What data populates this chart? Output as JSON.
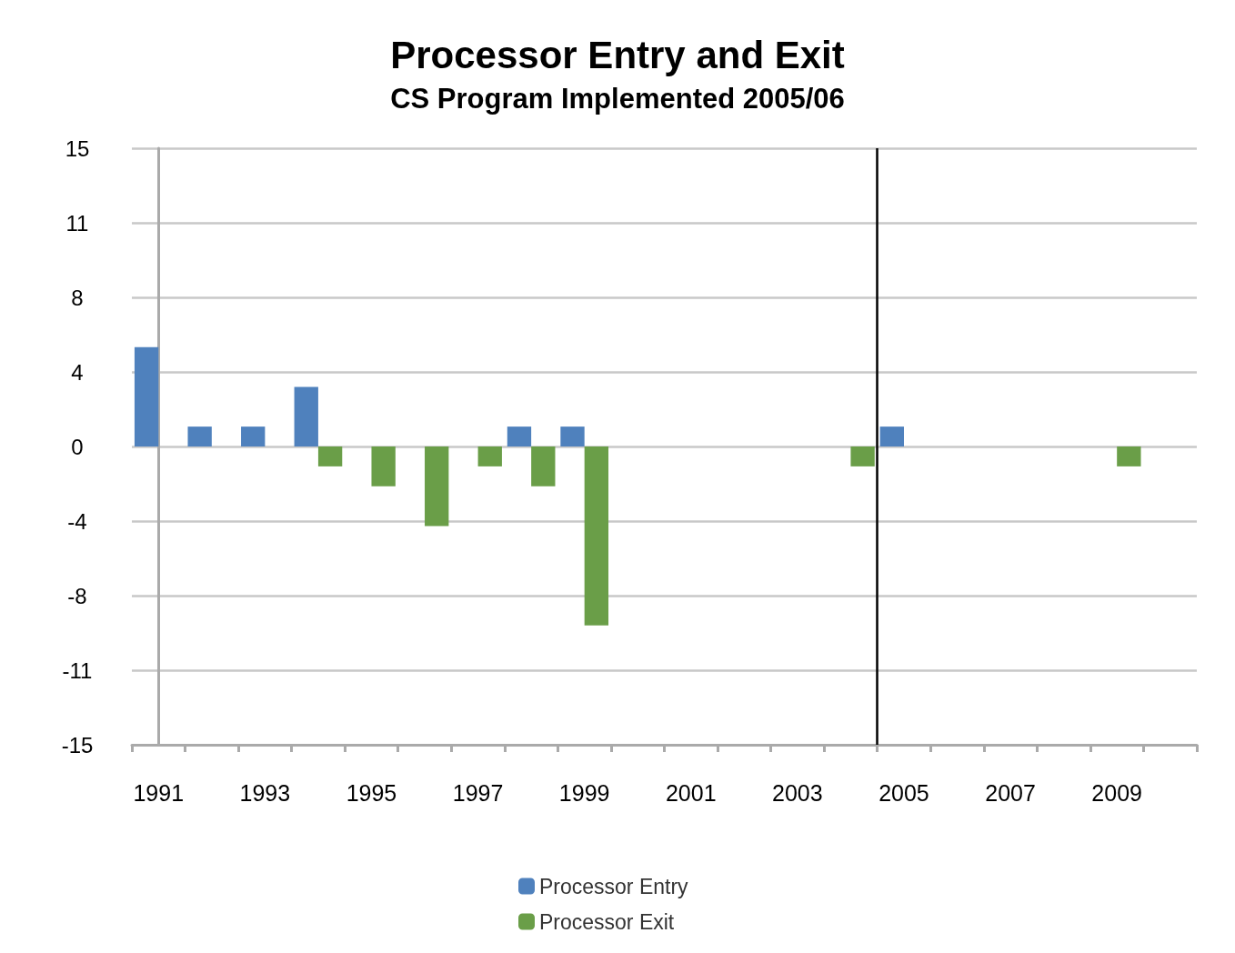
{
  "chart_data": {
    "type": "bar",
    "title": "Processor Entry and Exit",
    "subtitle": "CS Program Implemented 2005/06",
    "categories": [
      "1991",
      null,
      "1993",
      null,
      "1995",
      null,
      "1997",
      null,
      "1999",
      null,
      "2001",
      null,
      "2003",
      null,
      "2005",
      null,
      "2007",
      null,
      "2009",
      null
    ],
    "series": [
      {
        "name": "Processor Entry",
        "color": "#4f81bd",
        "values": [
          5,
          1,
          1,
          3,
          null,
          null,
          null,
          1,
          1,
          null,
          null,
          null,
          null,
          null,
          1,
          null,
          null,
          null,
          null,
          null
        ]
      },
      {
        "name": "Processor Exit",
        "color": "#6a9e48",
        "values": [
          null,
          null,
          null,
          -1,
          -2,
          -4,
          -1,
          -2,
          -9,
          null,
          null,
          null,
          null,
          -1,
          null,
          null,
          null,
          null,
          -1,
          null
        ]
      }
    ],
    "ylim": [
      -15,
      15
    ],
    "yticks": [
      -15,
      {
        "value": -11.25,
        "label": "-11"
      },
      {
        "value": -7.5,
        "label": "-8"
      },
      {
        "value": -3.75,
        "label": "-4"
      },
      0,
      {
        "value": 3.75,
        "label": "4"
      },
      {
        "value": 7.5,
        "label": "8"
      },
      {
        "value": 11.25,
        "label": "11"
      },
      15
    ],
    "grid": "y",
    "legend": "bottom",
    "ref_lines": [
      {
        "axis": "x",
        "value": "2005",
        "color": "#000000"
      }
    ]
  }
}
